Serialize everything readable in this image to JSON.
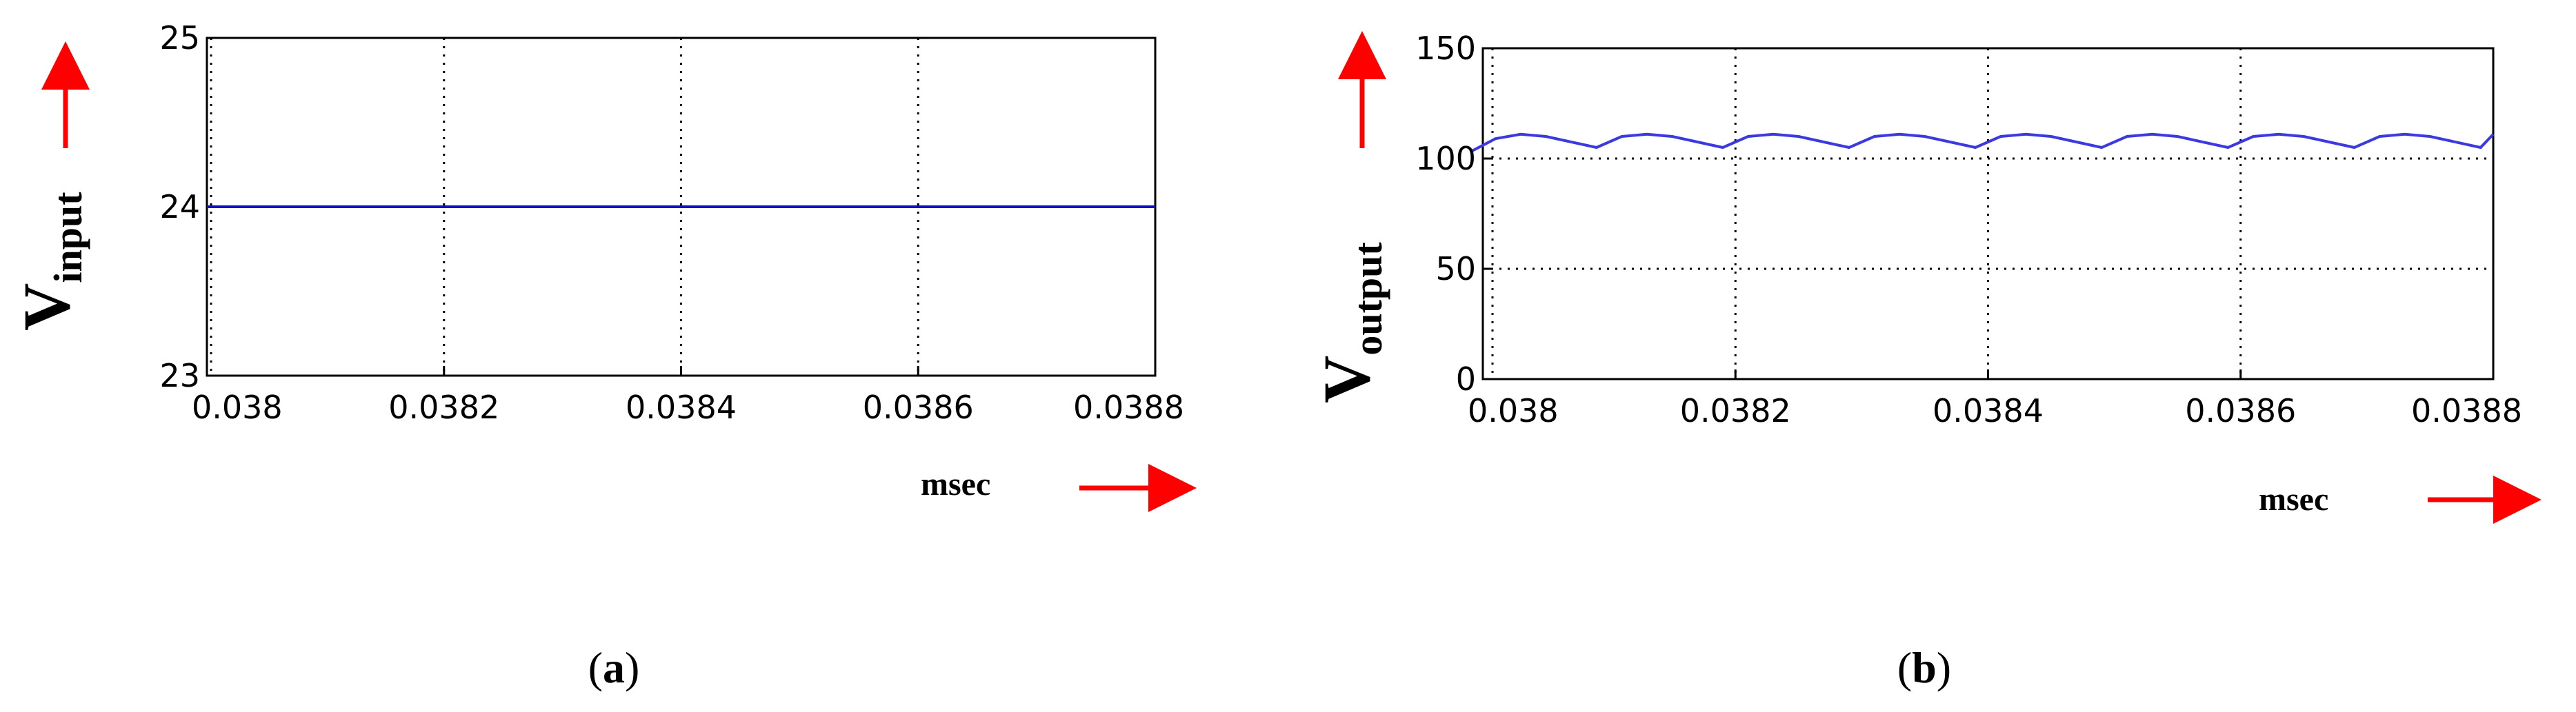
{
  "chart_data": [
    {
      "panel": "a",
      "type": "line",
      "ylabel_main": "V",
      "ylabel_sub": "input",
      "xlabel": "msec",
      "xlim": [
        0.038,
        0.0388
      ],
      "ylim": [
        23,
        25
      ],
      "xticks": [
        "0.038",
        "0.0382",
        "0.0384",
        "0.0386",
        "0.0388"
      ],
      "yticks": [
        "23",
        "24",
        "25"
      ],
      "grid": "vertical dotted",
      "series": [
        {
          "color": "#1010c8",
          "x": [
            0.038,
            0.0388
          ],
          "y": [
            24,
            24
          ]
        }
      ]
    },
    {
      "panel": "b",
      "type": "line",
      "ylabel_main": "V",
      "ylabel_sub": "output",
      "xlabel": "msec",
      "xlim": [
        0.038,
        0.0388
      ],
      "ylim": [
        0,
        150
      ],
      "xticks": [
        "0.038",
        "0.0382",
        "0.0384",
        "0.0386",
        "0.0388"
      ],
      "yticks": [
        "0",
        "50",
        "100",
        "150"
      ],
      "grid": "dotted both",
      "series": [
        {
          "color": "#3a3ae0",
          "x": [
            0.03799,
            0.03801,
            0.03803,
            0.03805,
            0.03809,
            0.03811,
            0.03813,
            0.03815,
            0.03819,
            0.03821,
            0.03823,
            0.03825,
            0.03829,
            0.03831,
            0.03833,
            0.03835,
            0.03839,
            0.03841,
            0.03843,
            0.03845,
            0.03849,
            0.03851,
            0.03853,
            0.03855,
            0.03859,
            0.03861,
            0.03863,
            0.03865,
            0.03869,
            0.03871,
            0.03873,
            0.03875,
            0.03879,
            0.0388
          ],
          "y": [
            103,
            109,
            111,
            110,
            105,
            110,
            111,
            110,
            105,
            110,
            111,
            110,
            105,
            110,
            111,
            110,
            105,
            110,
            111,
            110,
            105,
            110,
            111,
            110,
            105,
            110,
            111,
            110,
            105,
            110,
            111,
            110,
            105,
            111
          ]
        }
      ]
    }
  ],
  "panel_labels": {
    "a_open": "(",
    "a_letter": "a",
    "a_close": ")",
    "b_open": "(",
    "b_letter": "b",
    "b_close": ")"
  },
  "colors": {
    "arrow": "#ff0000",
    "axis": "#000000",
    "grid": "#000000"
  },
  "icons": [
    "arrow-up-icon",
    "arrow-right-icon"
  ]
}
